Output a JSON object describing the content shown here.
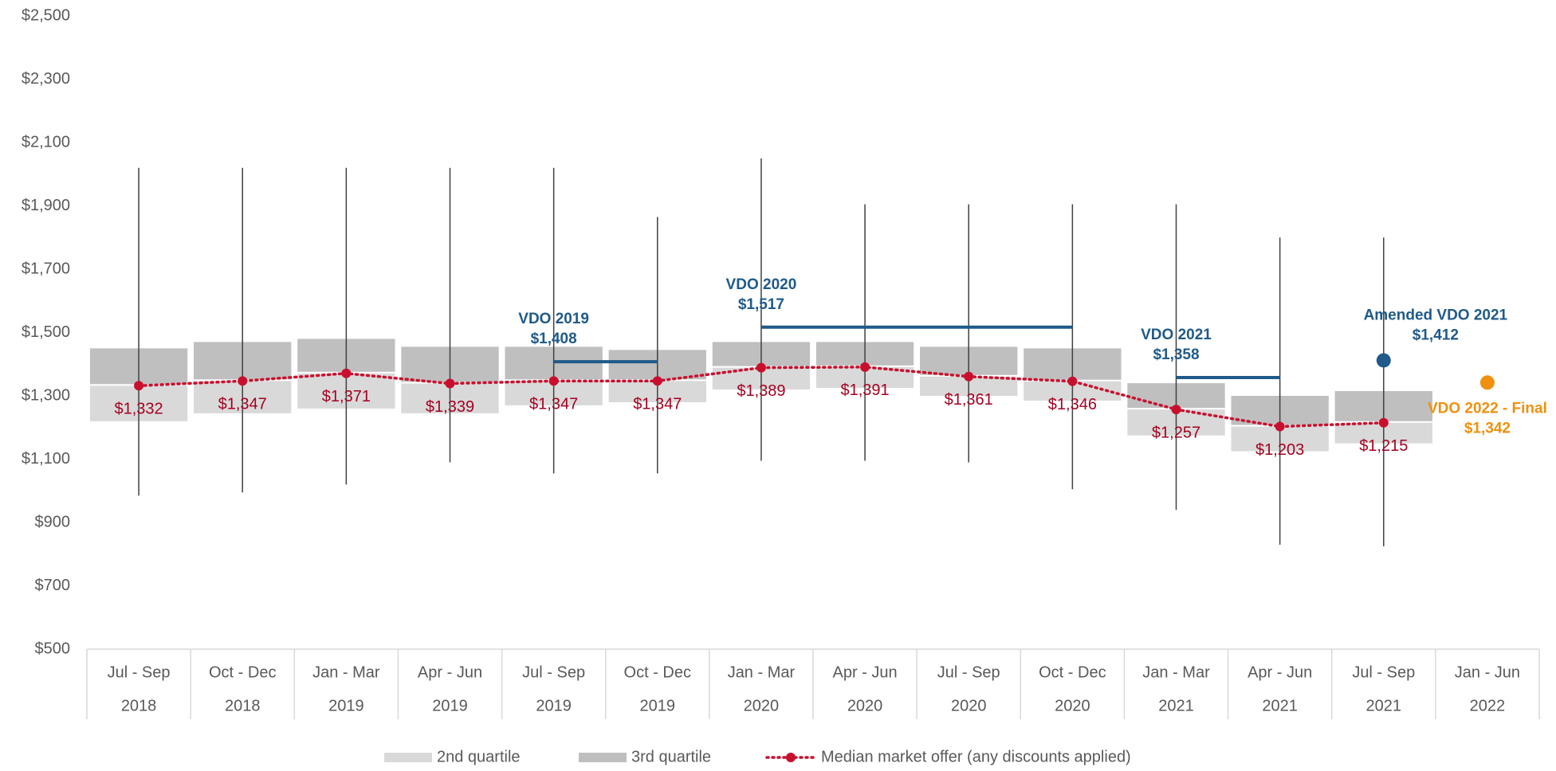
{
  "chart_data": {
    "type": "box",
    "categories": [
      [
        "Jul - Sep",
        "2018"
      ],
      [
        "Oct - Dec",
        "2018"
      ],
      [
        "Jan - Mar",
        "2019"
      ],
      [
        "Apr - Jun",
        "2019"
      ],
      [
        "Jul - Sep",
        "2019"
      ],
      [
        "Oct - Dec",
        "2019"
      ],
      [
        "Jan - Mar",
        "2020"
      ],
      [
        "Apr - Jun",
        "2020"
      ],
      [
        "Jul - Sep",
        "2020"
      ],
      [
        "Oct - Dec",
        "2020"
      ],
      [
        "Jan - Mar",
        "2021"
      ],
      [
        "Apr - Jun",
        "2021"
      ],
      [
        "Jul - Sep",
        "2021"
      ],
      [
        "Jan - Jun",
        "2022"
      ]
    ],
    "series": [
      {
        "name": "2nd quartile",
        "color": "#d9d9d9",
        "values": [
          1220,
          1245,
          1260,
          1245,
          1270,
          1280,
          1320,
          1325,
          1300,
          1285,
          1175,
          1125,
          1150,
          null
        ]
      },
      {
        "name": "3rd quartile",
        "color": "#bfbfbf",
        "values": [
          1450,
          1470,
          1480,
          1455,
          1455,
          1445,
          1470,
          1470,
          1455,
          1450,
          1340,
          1300,
          1315,
          null
        ]
      },
      {
        "name": "Median market offer (any discounts applied)",
        "color": "#c8102e",
        "values": [
          1332,
          1347,
          1371,
          1339,
          1347,
          1347,
          1389,
          1391,
          1361,
          1346,
          1257,
          1203,
          1215,
          null
        ],
        "value_labels": [
          "$1,332",
          "$1,347",
          "$1,371",
          "$1,339",
          "$1,347",
          "$1,347",
          "$1,389",
          "$1,391",
          "$1,361",
          "$1,346",
          "$1,257",
          "$1,203",
          "$1,215",
          null
        ]
      }
    ],
    "whisker_low": [
      985,
      995,
      1020,
      1090,
      1055,
      1055,
      1095,
      1095,
      1090,
      1005,
      940,
      830,
      825,
      null
    ],
    "whisker_high": [
      2020,
      2020,
      2020,
      2020,
      2020,
      1865,
      2050,
      1905,
      1905,
      1905,
      1905,
      1800,
      1800,
      null
    ],
    "reference_lines": [
      {
        "name": "VDO 2019",
        "value": 1408,
        "value_label": "$1,408",
        "start": 4,
        "end": 5,
        "color": "#1f5a8a"
      },
      {
        "name": "VDO 2020",
        "value": 1517,
        "value_label": "$1,517",
        "start": 6,
        "end": 9,
        "color": "#1f5a8a"
      },
      {
        "name": "VDO 2021",
        "value": 1358,
        "value_label": "$1,358",
        "start": 10,
        "end": 11,
        "color": "#1f5a8a"
      }
    ],
    "reference_points": [
      {
        "name": "Amended VDO 2021",
        "value": 1412,
        "value_label": "$1,412",
        "category": 12,
        "color": "#1f5a8a"
      },
      {
        "name": "VDO 2022 - Final",
        "value": 1342,
        "value_label": "$1,342",
        "category": 13,
        "color": "#f0900f"
      }
    ],
    "ylim": [
      500,
      2500
    ],
    "yticks": [
      {
        "value": 500,
        "label": "$500"
      },
      {
        "value": 700,
        "label": "$700"
      },
      {
        "value": 900,
        "label": "$900"
      },
      {
        "value": 1100,
        "label": "$1,100"
      },
      {
        "value": 1300,
        "label": "$1,300"
      },
      {
        "value": 1500,
        "label": "$1,500"
      },
      {
        "value": 1700,
        "label": "$1,700"
      },
      {
        "value": 1900,
        "label": "$1,900"
      },
      {
        "value": 2100,
        "label": "$2,100"
      },
      {
        "value": 2300,
        "label": "$2,300"
      },
      {
        "value": 2500,
        "label": "$2,500"
      }
    ]
  }
}
